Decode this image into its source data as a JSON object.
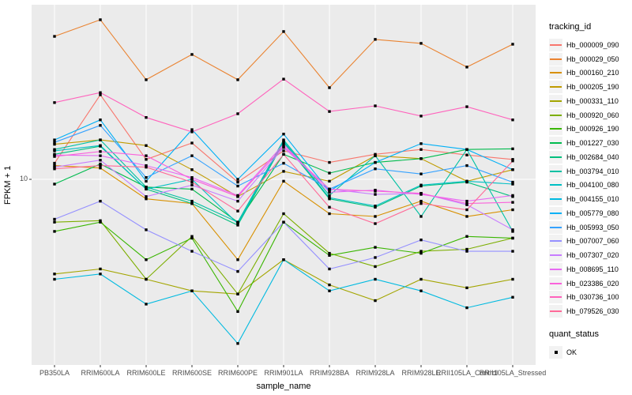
{
  "chart_data": {
    "type": "line",
    "title": "",
    "xlabel": "sample_name",
    "ylabel": "FPKM + 1",
    "y_scale": "log10",
    "y_tick_label": "10",
    "y_tick_value": 10,
    "ylim": [
      1.5,
      65
    ],
    "grid": "vertical-white-on-gray-panel",
    "point_marker": "small-black-square",
    "panel_bg": "#EBEBEB",
    "grid_color": "#FFFFFF",
    "tick_text_color": "#4D4D4D",
    "categories": [
      "PB350LA",
      "RRIM600LA",
      "RRIM600LE",
      "RRIM600SE",
      "RRIM600PE",
      "RRIM901LA",
      "RRIM928BA",
      "RRIM928LA",
      "RRIM928LE",
      "RRII105LA_Control",
      "RRII105LA_Stressed"
    ],
    "series": [
      {
        "name": "Hb_000009_090",
        "color": "#F8766D",
        "values": [
          11.9,
          24.9,
          12.4,
          14.8,
          9.7,
          13.6,
          12.0,
          13.1,
          13.8,
          13.0,
          12.4
        ]
      },
      {
        "name": "Hb_000029_050",
        "color": "#EA8331",
        "values": [
          46.8,
          56.0,
          29.3,
          38.5,
          29.3,
          49.3,
          26.9,
          45.3,
          43.4,
          33.6,
          43.0
        ]
      },
      {
        "name": "Hb_000160_210",
        "color": "#D89000",
        "values": [
          11.6,
          11.3,
          8.1,
          7.7,
          4.2,
          9.8,
          6.9,
          6.7,
          7.9,
          6.7,
          7.2
        ]
      },
      {
        "name": "Hb_000205_190",
        "color": "#C09B00",
        "values": [
          14.6,
          15.3,
          14.4,
          11.1,
          8.3,
          10.9,
          9.8,
          12.9,
          12.5,
          9.8,
          11.1
        ]
      },
      {
        "name": "Hb_000331_110",
        "color": "#A3A500",
        "values": [
          3.6,
          3.8,
          3.4,
          3.0,
          2.9,
          4.2,
          3.2,
          2.7,
          3.4,
          3.1,
          3.4
        ]
      },
      {
        "name": "Hb_000920_060",
        "color": "#7CAE00",
        "values": [
          6.3,
          6.4,
          3.4,
          5.4,
          2.9,
          6.9,
          4.5,
          3.9,
          4.6,
          4.7,
          5.3
        ]
      },
      {
        "name": "Hb_000926_190",
        "color": "#39B600",
        "values": [
          5.7,
          6.3,
          4.2,
          5.3,
          2.4,
          6.3,
          4.4,
          4.8,
          4.5,
          5.4,
          5.3
        ]
      },
      {
        "name": "Hb_001227_030",
        "color": "#00BB4E",
        "values": [
          9.5,
          11.8,
          9.2,
          9.0,
          6.3,
          13.1,
          10.7,
          12.0,
          12.5,
          13.8,
          13.9
        ]
      },
      {
        "name": "Hb_002684_040",
        "color": "#00BF7D",
        "values": [
          13.1,
          14.3,
          9.0,
          7.7,
          6.1,
          14.9,
          8.1,
          7.4,
          9.3,
          9.7,
          8.3
        ]
      },
      {
        "name": "Hb_003794_010",
        "color": "#00C1A3",
        "values": [
          13.8,
          15.3,
          9.2,
          7.9,
          6.3,
          15.3,
          8.4,
          12.9,
          6.7,
          13.8,
          5.7
        ]
      },
      {
        "name": "Hb_004100_080",
        "color": "#00BFC4",
        "values": [
          13.6,
          14.4,
          9.0,
          10.0,
          6.2,
          15.1,
          8.2,
          7.5,
          9.4,
          9.8,
          9.5
        ]
      },
      {
        "name": "Hb_004155_010",
        "color": "#00BAE0",
        "values": [
          3.4,
          3.6,
          2.6,
          3.0,
          1.7,
          4.2,
          3.0,
          3.4,
          3.0,
          2.5,
          2.8
        ]
      },
      {
        "name": "Hb_005779_080",
        "color": "#00B0F6",
        "values": [
          15.3,
          19.0,
          9.8,
          17.1,
          10.0,
          16.3,
          8.8,
          12.0,
          14.7,
          13.8,
          11.1
        ]
      },
      {
        "name": "Hb_005993_050",
        "color": "#35A2FF",
        "values": [
          14.9,
          17.9,
          10.2,
          12.9,
          9.3,
          11.9,
          9.0,
          11.2,
          10.6,
          11.6,
          9.7
        ]
      },
      {
        "name": "Hb_007007_060",
        "color": "#9590FF",
        "values": [
          6.5,
          7.9,
          5.8,
          4.6,
          3.7,
          6.3,
          3.8,
          4.3,
          5.2,
          4.6,
          4.6
        ]
      },
      {
        "name": "Hb_007307_020",
        "color": "#C77CFF",
        "values": [
          11.4,
          12.3,
          8.3,
          9.4,
          7.9,
          14.1,
          9.0,
          8.5,
          8.6,
          7.6,
          5.8
        ]
      },
      {
        "name": "Hb_008695_110",
        "color": "#E76BF3",
        "values": [
          13.0,
          12.9,
          11.6,
          10.2,
          8.4,
          14.6,
          8.7,
          8.9,
          8.5,
          7.9,
          8.4
        ]
      },
      {
        "name": "Hb_023386_020",
        "color": "#FA62DB",
        "values": [
          12.8,
          13.5,
          12.9,
          10.0,
          8.3,
          14.3,
          9.0,
          8.8,
          8.6,
          7.7,
          7.8
        ]
      },
      {
        "name": "Hb_030736_100",
        "color": "#FF62BC",
        "values": [
          22.9,
          25.5,
          19.5,
          16.7,
          20.3,
          29.5,
          20.8,
          22.1,
          19.8,
          21.9,
          19.0
        ]
      },
      {
        "name": "Hb_079526_030",
        "color": "#FF6A98",
        "values": [
          11.2,
          11.6,
          11.4,
          9.7,
          7.1,
          13.1,
          7.4,
          6.2,
          7.7,
          7.2,
          12.2
        ]
      }
    ],
    "legend": {
      "tracking_title": "tracking_id",
      "quant_title": "quant_status",
      "quant_value": "OK",
      "position": "right"
    }
  }
}
